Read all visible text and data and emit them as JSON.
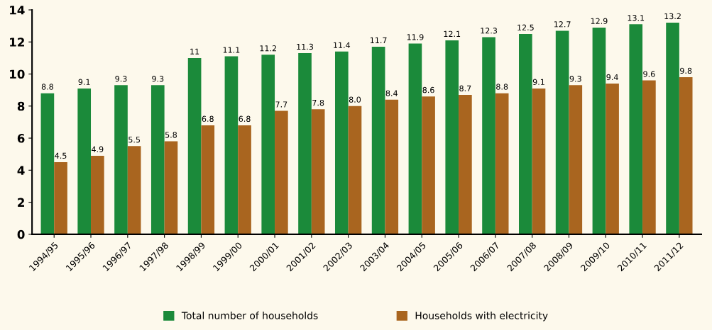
{
  "chart_data": {
    "type": "bar",
    "categories": [
      "1994/95",
      "1995/96",
      "1996/97",
      "1997/98",
      "1998/99",
      "1999/00",
      "2000/01",
      "2001/02",
      "2002/03",
      "2003/04",
      "2004/05",
      "2005/06",
      "2006/07",
      "2007/08",
      "2008/09",
      "2009/10",
      "2010/11",
      "2011/12"
    ],
    "series": [
      {
        "name": "Total number of households",
        "color": "#1b8a3a",
        "values": [
          8.8,
          9.1,
          9.3,
          9.3,
          11,
          11.1,
          11.2,
          11.3,
          11.4,
          11.7,
          11.9,
          12.1,
          12.3,
          12.5,
          12.7,
          12.9,
          13.1,
          13.2
        ],
        "value_labels": [
          "8.8",
          "9.1",
          "9.3",
          "9.3",
          "11",
          "11.1",
          "11.2",
          "11.3",
          "11.4",
          "11.7",
          "11.9",
          "12.1",
          "12.3",
          "12.5",
          "12.7",
          "12.9",
          "13.1",
          "13.2"
        ]
      },
      {
        "name": "Households with electricity",
        "color": "#a9651f",
        "values": [
          4.5,
          4.9,
          5.5,
          5.8,
          6.8,
          6.8,
          7.7,
          7.8,
          8.0,
          8.4,
          8.6,
          8.7,
          8.8,
          9.1,
          9.3,
          9.4,
          9.6,
          9.8
        ],
        "value_labels": [
          "4.5",
          "4.9",
          "5.5",
          "5.8",
          "6.8",
          "6.8",
          "7.7",
          "7.8",
          "8.0",
          "8.4",
          "8.6",
          "8.7",
          "8.8",
          "9.1",
          "9.3",
          "9.4",
          "9.6",
          "9.8"
        ]
      }
    ],
    "ylim": [
      0,
      14
    ],
    "yticks": [
      0,
      2,
      4,
      6,
      8,
      10,
      12,
      14
    ],
    "grid": false,
    "legend": "bottom"
  }
}
